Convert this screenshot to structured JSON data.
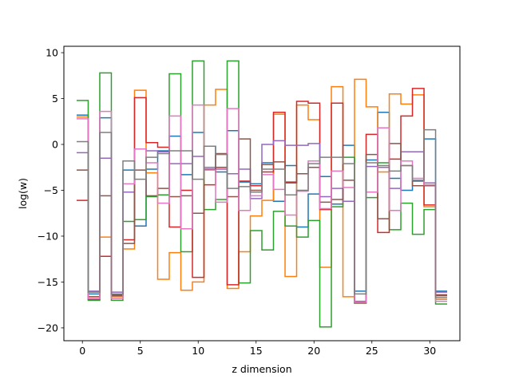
{
  "chart_data": {
    "type": "line",
    "step": true,
    "title": "",
    "xlabel": "z dimension",
    "ylabel": "log(w)",
    "xlim": [
      -1.6,
      32.6
    ],
    "ylim": [
      -21.4,
      10.7
    ],
    "xticks": [
      0,
      5,
      10,
      15,
      20,
      25,
      30
    ],
    "yticks": [
      -20,
      -15,
      -10,
      -5,
      0,
      5,
      10
    ],
    "grid": false,
    "legend": "none",
    "x": [
      0,
      1,
      2,
      3,
      4,
      5,
      6,
      7,
      8,
      9,
      10,
      11,
      12,
      13,
      14,
      15,
      16,
      17,
      18,
      19,
      20,
      21,
      22,
      23,
      24,
      25,
      26,
      27,
      28,
      29,
      30,
      31
    ],
    "series": [
      {
        "color": "#1f77b4",
        "values": [
          3.2,
          -16.3,
          2.9,
          -16.4,
          -2.8,
          -8.9,
          -2.7,
          -0.7,
          0.9,
          -3.3,
          1.3,
          -0.2,
          -3.0,
          1.5,
          -4.1,
          -4.3,
          -2.0,
          -6.2,
          -2.3,
          -9.0,
          -5.4,
          -3.5,
          -6.5,
          -0.1,
          -16.0,
          -1.7,
          3.5,
          -3.7,
          -5.0,
          -4.0,
          0.6,
          -16.0
        ]
      },
      {
        "color": "#ff7f0e",
        "values": [
          3.0,
          -16.9,
          -10.1,
          -16.6,
          -11.4,
          5.9,
          -3.1,
          -14.7,
          -11.8,
          -15.9,
          -15.0,
          4.3,
          6.0,
          -15.7,
          -11.7,
          -7.8,
          -6.1,
          3.3,
          -14.4,
          4.3,
          2.7,
          -13.4,
          6.3,
          -16.6,
          7.1,
          4.1,
          -3.0,
          5.5,
          4.4,
          5.4,
          -6.8,
          -16.9
        ]
      },
      {
        "color": "#2ca02c",
        "values": [
          4.8,
          -17.0,
          7.8,
          -17.0,
          -8.4,
          -8.2,
          -5.7,
          -5.5,
          7.7,
          -11.7,
          9.1,
          -7.1,
          -6.0,
          9.1,
          -15.1,
          -9.4,
          -11.5,
          -7.3,
          -8.9,
          -10.1,
          -8.3,
          -19.9,
          -6.8,
          -1.4,
          -17.3,
          -5.8,
          -2.0,
          -9.3,
          -6.4,
          -9.8,
          -7.1,
          -17.4
        ]
      },
      {
        "color": "#d62728",
        "values": [
          -6.1,
          -16.6,
          -12.2,
          -16.4,
          -10.4,
          5.1,
          0.2,
          -0.3,
          -9.0,
          -5.0,
          -14.5,
          -4.4,
          -2.5,
          -15.3,
          -4.0,
          -4.5,
          -3.0,
          3.5,
          -4.1,
          4.7,
          4.5,
          -7.1,
          4.5,
          -6.2,
          -17.2,
          1.1,
          -9.6,
          -1.6,
          3.1,
          6.1,
          -6.6,
          -16.4
        ]
      },
      {
        "color": "#9467bd",
        "values": [
          -0.9,
          -16.0,
          -1.5,
          -16.1,
          -5.2,
          -0.5,
          -0.7,
          -0.8,
          -2.1,
          -2.1,
          -1.3,
          -2.5,
          -2.7,
          -3.2,
          -2.7,
          -5.9,
          0.0,
          0.4,
          -0.1,
          -0.1,
          0.1,
          -5.7,
          -4.8,
          -6.2,
          -17.1,
          -2.4,
          -2.5,
          -4.8,
          -0.8,
          -0.8,
          -4.2,
          -16.1
        ]
      },
      {
        "color": "#8c564b",
        "values": [
          -2.8,
          -16.9,
          -5.6,
          -16.5,
          -10.8,
          -2.8,
          -5.6,
          -4.8,
          -5.7,
          -5.6,
          -7.5,
          -2.7,
          -1.0,
          -5.7,
          0.6,
          -5.0,
          -2.2,
          -1.9,
          -4.2,
          -3.2,
          -2.5,
          -6.3,
          -6.0,
          -3.9,
          -17.3,
          -1.1,
          -8.1,
          0.1,
          -2.3,
          -4.5,
          -4.5,
          -16.5
        ]
      },
      {
        "color": "#e377c2",
        "values": [
          2.8,
          -16.8,
          3.6,
          -16.8,
          -4.3,
          -0.5,
          -2.0,
          -6.4,
          3.1,
          -9.2,
          4.3,
          -2.8,
          -6.3,
          3.9,
          -7.2,
          -5.6,
          -3.3,
          -4.9,
          -7.7,
          -5.1,
          -1.8,
          -7.0,
          -2.9,
          -4.7,
          -17.2,
          -5.2,
          1.8,
          -7.2,
          -1.8,
          -3.7,
          -4.4,
          -17.1
        ]
      },
      {
        "color": "#7f7f7f",
        "values": [
          0.3,
          -16.1,
          1.3,
          -16.3,
          -1.8,
          -3.8,
          -1.4,
          -1.0,
          -0.7,
          -0.7,
          -3.8,
          -0.2,
          -1.1,
          -4.8,
          -4.6,
          -5.2,
          -2.7,
          -2.7,
          -5.5,
          -5.0,
          -2.1,
          -1.4,
          -1.4,
          -2.1,
          -16.3,
          -2.0,
          -2.3,
          -2.9,
          -2.3,
          -3.9,
          1.6,
          -16.7
        ]
      }
    ]
  }
}
